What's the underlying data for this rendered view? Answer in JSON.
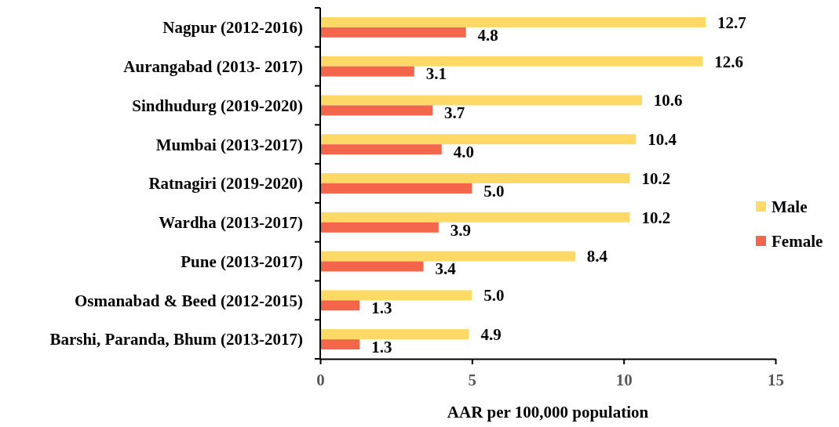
{
  "chart_data": {
    "type": "bar",
    "orientation": "horizontal",
    "categories": [
      "Nagpur (2012-2016)",
      "Aurangabad (2013- 2017)",
      "Sindhudurg (2019-2020)",
      "Mumbai (2013-2017)",
      "Ratnagiri (2019-2020)",
      "Wardha (2013-2017)",
      "Pune (2013-2017)",
      "Osmanabad & Beed (2012-2015)",
      "Barshi, Paranda, Bhum (2013-2017)"
    ],
    "series": [
      {
        "name": "Male",
        "color": "#ffd966",
        "values": [
          12.7,
          12.6,
          10.6,
          10.4,
          10.2,
          10.2,
          8.4,
          5.0,
          4.9
        ],
        "value_labels": [
          "12.7",
          "12.6",
          "10.6",
          "10.4",
          "10.2",
          "10.2",
          "8.4",
          "5.0",
          "4.9"
        ]
      },
      {
        "name": "Female",
        "color": "#f4664b",
        "values": [
          4.8,
          3.1,
          3.7,
          4.0,
          5.0,
          3.9,
          3.4,
          1.3,
          1.3
        ],
        "value_labels": [
          "4.8",
          "3.1",
          "3.7",
          "4.0",
          "5.0",
          "3.9",
          "3.4",
          "1.3",
          "1.3"
        ]
      }
    ],
    "xlabel": "AAR per 100,000 population",
    "xlim": [
      0,
      15
    ],
    "xticks": [
      0,
      5,
      10,
      15
    ],
    "legend": "right"
  }
}
